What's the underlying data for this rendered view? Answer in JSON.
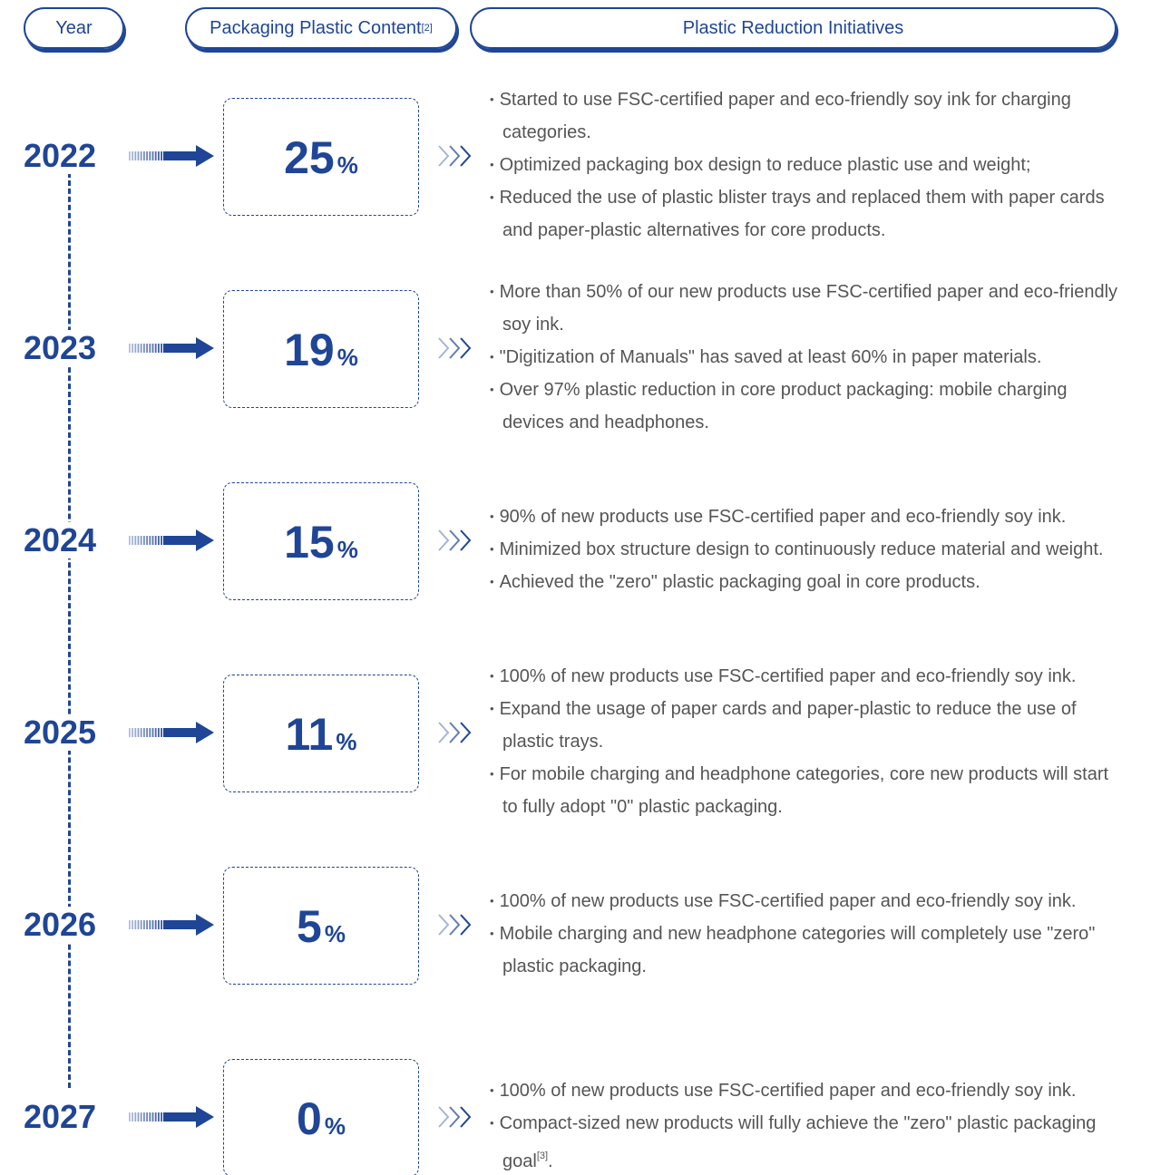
{
  "header": {
    "year": "Year",
    "content": "Packaging Plastic Content",
    "content_note": "[2]",
    "initiatives": "Plastic Reduction Initiatives"
  },
  "unit": "%",
  "rows": [
    {
      "year": "2022",
      "value": "25",
      "items": [
        {
          "text": "Started to use FSC-certified paper and eco-friendly soy ink for charging categories."
        },
        {
          "text": "Optimized packaging box design to reduce plastic use and weight;"
        },
        {
          "text": "Reduced the use of plastic blister trays and replaced them with paper cards and paper-plastic alternatives for core products."
        }
      ]
    },
    {
      "year": "2023",
      "value": "19",
      "items": [
        {
          "text": "More than 50% of our new products use FSC-certified paper and eco-friendly soy ink."
        },
        {
          "text": "\"Digitization of Manuals\" has saved at least 60% in paper materials."
        },
        {
          "text": "Over 97% plastic reduction in core product packaging: mobile charging devices and headphones."
        }
      ]
    },
    {
      "year": "2024",
      "value": "15",
      "items": [
        {
          "text": "90% of new products use FSC-certified paper and eco-friendly soy ink."
        },
        {
          "text": "Minimized box structure design to continuously reduce material and weight."
        },
        {
          "text": "Achieved the \"zero\" plastic packaging goal in core products."
        }
      ]
    },
    {
      "year": "2025",
      "value": "11",
      "items": [
        {
          "text": "100% of new products use FSC-certified paper and eco-friendly soy ink."
        },
        {
          "text": "Expand the usage of paper cards and paper-plastic to reduce the use of plastic trays."
        },
        {
          "text": "For mobile charging and headphone categories, core new products will start to fully adopt \"0\" plastic packaging."
        }
      ]
    },
    {
      "year": "2026",
      "value": "5",
      "items": [
        {
          "text": "100% of new products use FSC-certified paper and eco-friendly soy ink."
        },
        {
          "text": "Mobile charging and new headphone categories will completely use \"zero\" plastic packaging."
        }
      ]
    },
    {
      "year": "2027",
      "value": "0",
      "items": [
        {
          "text": "100% of new products use FSC-certified paper and eco-friendly soy ink."
        },
        {
          "text": "Compact-sized new products will fully achieve the \"zero\" plastic packaging  goal",
          "note": "[3]",
          "tail": "."
        }
      ]
    }
  ]
}
